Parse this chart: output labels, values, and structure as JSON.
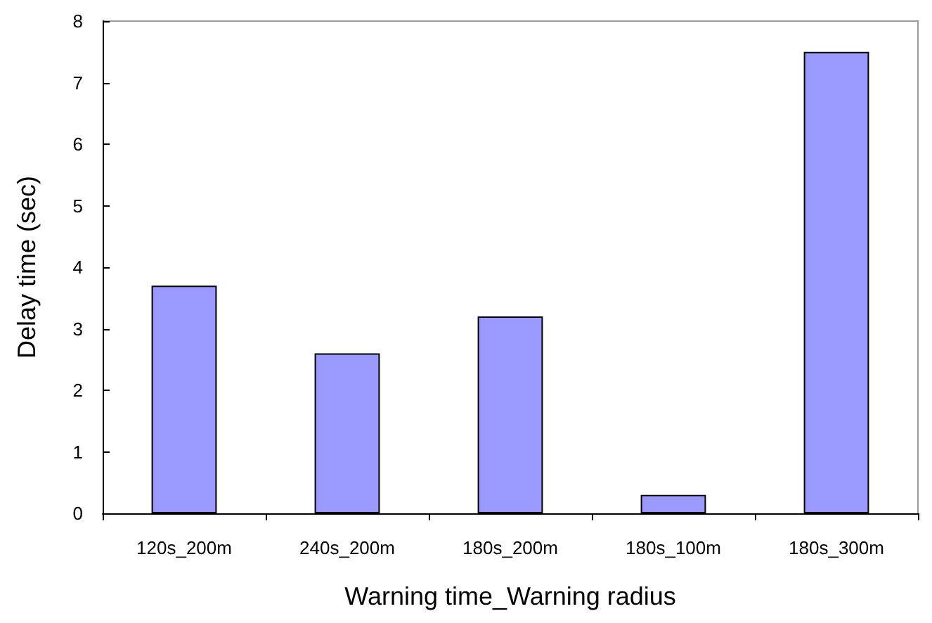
{
  "chart_data": {
    "type": "bar",
    "xlabel": "Warning time_Warning radius",
    "ylabel": "Delay time (sec)",
    "categories": [
      "120s_200m",
      "240s_200m",
      "180s_200m",
      "180s_100m",
      "180s_300m"
    ],
    "values": [
      3.7,
      2.6,
      3.2,
      0.3,
      7.5
    ],
    "color": "#9999ff",
    "ylim": [
      0,
      8
    ],
    "yticks": [
      0,
      1,
      2,
      3,
      4,
      5,
      6,
      7,
      8
    ],
    "grid": false
  }
}
